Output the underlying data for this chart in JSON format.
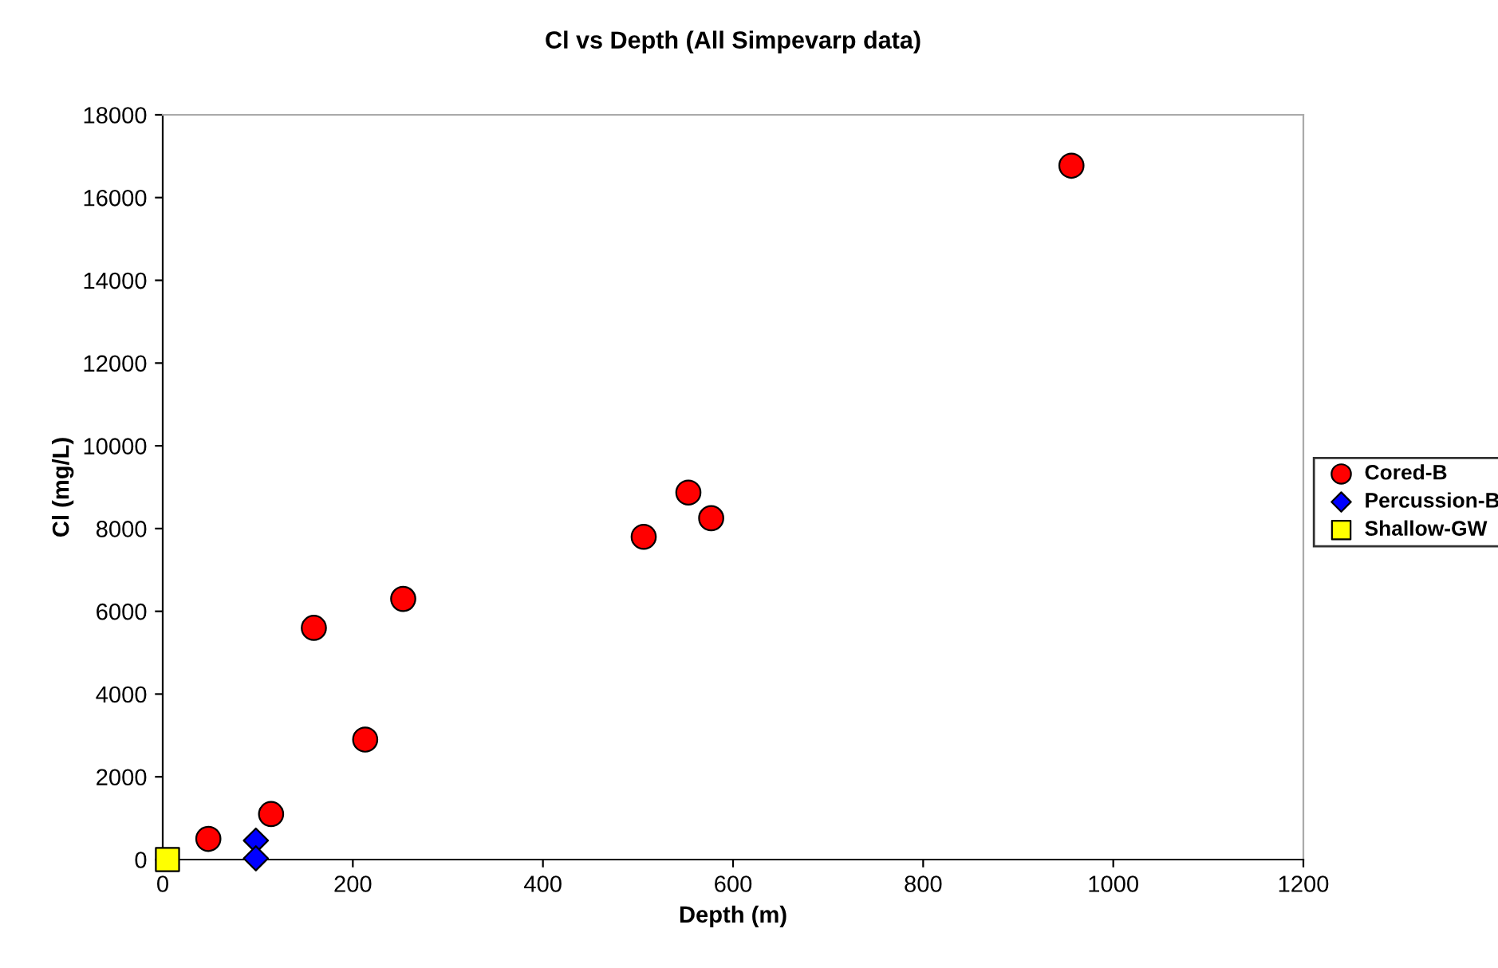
{
  "chart_data": {
    "type": "scatter",
    "title": "Cl vs Depth (All Simpevarp data)",
    "xlabel": "Depth (m)",
    "ylabel": "Cl (mg/L)",
    "xlim": [
      0,
      1200
    ],
    "xticks": [
      0,
      200,
      400,
      600,
      800,
      1000,
      1200
    ],
    "ylim": [
      0,
      18000
    ],
    "yticks": [
      0,
      2000,
      4000,
      6000,
      8000,
      10000,
      12000,
      14000,
      16000,
      18000
    ],
    "grid": false,
    "legend": "right",
    "series": [
      {
        "name": "Cored-B",
        "color": "#ff0000",
        "marker": "circle",
        "x": [
          48,
          114,
          159,
          213,
          253,
          506,
          553,
          577,
          956
        ],
        "values": [
          500,
          1100,
          5600,
          2900,
          6300,
          7800,
          8870,
          8250,
          16770
        ]
      },
      {
        "name": "Percussion-B",
        "color": "#0000ff",
        "marker": "diamond",
        "x": [
          98,
          98
        ],
        "values": [
          460,
          30
        ]
      },
      {
        "name": "Shallow-GW",
        "color": "#ffff00",
        "marker": "square",
        "x": [
          5
        ],
        "values": [
          0
        ]
      }
    ]
  }
}
